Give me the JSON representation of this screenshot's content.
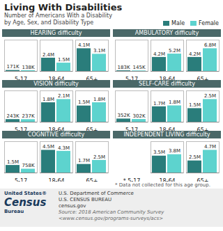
{
  "title": "Living With Disabilities",
  "subtitle": "Number of Americans With a Disability\nby Age, Sex, and Disability Type",
  "legend": "top",
  "annotations": [
    [
      "United States®",
      "Census",
      "Bureau"
    ],
    [
      "U.S. Department of Commerce",
      "U.S. CENSUS BUREAU",
      "census.gov"
    ],
    [
      "Source: 2018 American Community Survey",
      "<www.census.gov/programs-surveys/acs>"
    ]
  ],
  "chart_data": [
    {
      "type": "bar",
      "title": "HEARING difficulty",
      "categories": [
        "5-17",
        "18-64",
        "65+"
      ],
      "series": [
        {
          "name": "Male",
          "color": "#2a7d7b",
          "values": [
            171000,
            2400000,
            4100000
          ],
          "value_labels": [
            "171K",
            "2.4M",
            "4.1M"
          ]
        },
        {
          "name": "Female",
          "color": "#5dd3ce",
          "values": [
            138000,
            1500000,
            3100000
          ],
          "value_labels": [
            "138K",
            "1.5M",
            "3.1M"
          ]
        }
      ],
      "ylim": [
        0,
        5658000
      ],
      "data_labels": true,
      "tick_labels": "x"
    },
    {
      "type": "bar",
      "title": "AMBULATORY difficulty",
      "categories": [
        "5-17",
        "18-64",
        "65+"
      ],
      "series": [
        {
          "name": "Male",
          "color": "#2a7d7b",
          "values": [
            183000,
            4200000,
            4200000
          ],
          "value_labels": [
            "183K",
            "4.2M",
            "4.2M"
          ]
        },
        {
          "name": "Female",
          "color": "#5dd3ce",
          "values": [
            145000,
            5200000,
            6800000
          ],
          "value_labels": [
            "145K",
            "5.2M",
            "6.8M"
          ]
        }
      ],
      "ylim": [
        0,
        9384000
      ],
      "data_labels": true,
      "tick_labels": "x"
    },
    {
      "type": "bar",
      "title": "VISION difficulty",
      "categories": [
        "5-17",
        "18-64",
        "65+"
      ],
      "series": [
        {
          "name": "Male",
          "color": "#2a7d7b",
          "values": [
            243000,
            1800000,
            1500000
          ],
          "value_labels": [
            "243K",
            "1.8M",
            "1.5M"
          ]
        },
        {
          "name": "Female",
          "color": "#5dd3ce",
          "values": [
            237000,
            2100000,
            1800000
          ],
          "value_labels": [
            "237K",
            "2.1M",
            "1.8M"
          ]
        }
      ],
      "ylim": [
        0,
        2898000
      ],
      "data_labels": true,
      "tick_labels": "x"
    },
    {
      "type": "bar",
      "title": "SELF-CARE difficulty",
      "categories": [
        "5-17",
        "18-64",
        "65+"
      ],
      "series": [
        {
          "name": "Male",
          "color": "#2a7d7b",
          "values": [
            352000,
            1700000,
            1500000
          ],
          "value_labels": [
            "352K",
            "1.7M",
            "1.5M"
          ]
        },
        {
          "name": "Female",
          "color": "#5dd3ce",
          "values": [
            302000,
            1800000,
            2500000
          ],
          "value_labels": [
            "302K",
            "1.8M",
            "2.5M"
          ]
        }
      ],
      "ylim": [
        0,
        3450000
      ],
      "data_labels": true,
      "tick_labels": "x"
    },
    {
      "type": "bar",
      "title": "COGNITIVE difficulty",
      "categories": [
        "5-17",
        "18-64",
        "65+"
      ],
      "series": [
        {
          "name": "Male",
          "color": "#2a7d7b",
          "values": [
            1500000,
            4500000,
            1700000
          ],
          "value_labels": [
            "1.5M",
            "4.5M",
            "1.7M"
          ]
        },
        {
          "name": "Female",
          "color": "#5dd3ce",
          "values": [
            758000,
            4300000,
            2500000
          ],
          "value_labels": [
            "758K",
            "4.3M",
            "2.5M"
          ]
        }
      ],
      "ylim": [
        0,
        6210000
      ],
      "data_labels": true,
      "tick_labels": "x"
    },
    {
      "type": "bar",
      "title": "INDEPENDENT LIVING difficulty",
      "categories": [
        "* 5-17",
        "18-64",
        "65+"
      ],
      "series": [
        {
          "name": "Male",
          "color": "#2a7d7b",
          "values": [
            null,
            3500000,
            2500000
          ],
          "value_labels": [
            null,
            "3.5M",
            "2.5M"
          ]
        },
        {
          "name": "Female",
          "color": "#5dd3ce",
          "values": [
            null,
            3800000,
            4700000
          ],
          "value_labels": [
            null,
            "3.8M",
            "4.7M"
          ]
        }
      ],
      "ylim": [
        0,
        6486000
      ],
      "data_labels": true,
      "tick_labels": "x",
      "annotations": [
        "* Data not collected for this age group."
      ]
    }
  ]
}
